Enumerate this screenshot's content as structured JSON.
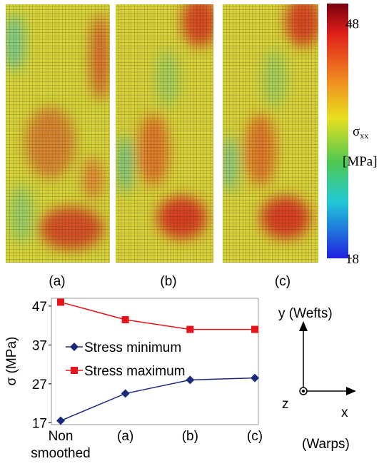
{
  "maps": {
    "panels": [
      "(a)",
      "(b)",
      "(c)"
    ],
    "colorbar": {
      "symbol": "σ",
      "subscript": "xx",
      "unit": "[MPa]",
      "ticks": [
        18,
        48
      ],
      "lim": [
        18,
        50.5
      ]
    }
  },
  "chart_data": {
    "type": "line",
    "ylabel": "σ (MPa)",
    "categories": [
      "Non smoothed",
      "(a)",
      "(b)",
      "(c)"
    ],
    "series": [
      {
        "name": "Stress minimum",
        "color": "#1c2a7c",
        "marker": "diamond",
        "values": [
          17.5,
          24.5,
          28,
          28.5
        ]
      },
      {
        "name": "Stress maximum",
        "color": "#e8141b",
        "marker": "square",
        "values": [
          48,
          43.5,
          41,
          41
        ]
      }
    ],
    "ylim": [
      16.5,
      49
    ],
    "yticks": [
      17,
      27,
      37,
      47
    ],
    "grid": false
  },
  "axes_diagram": {
    "y": "y (Wefts)",
    "z": "z",
    "x": "x",
    "x_note": "(Warps)"
  }
}
